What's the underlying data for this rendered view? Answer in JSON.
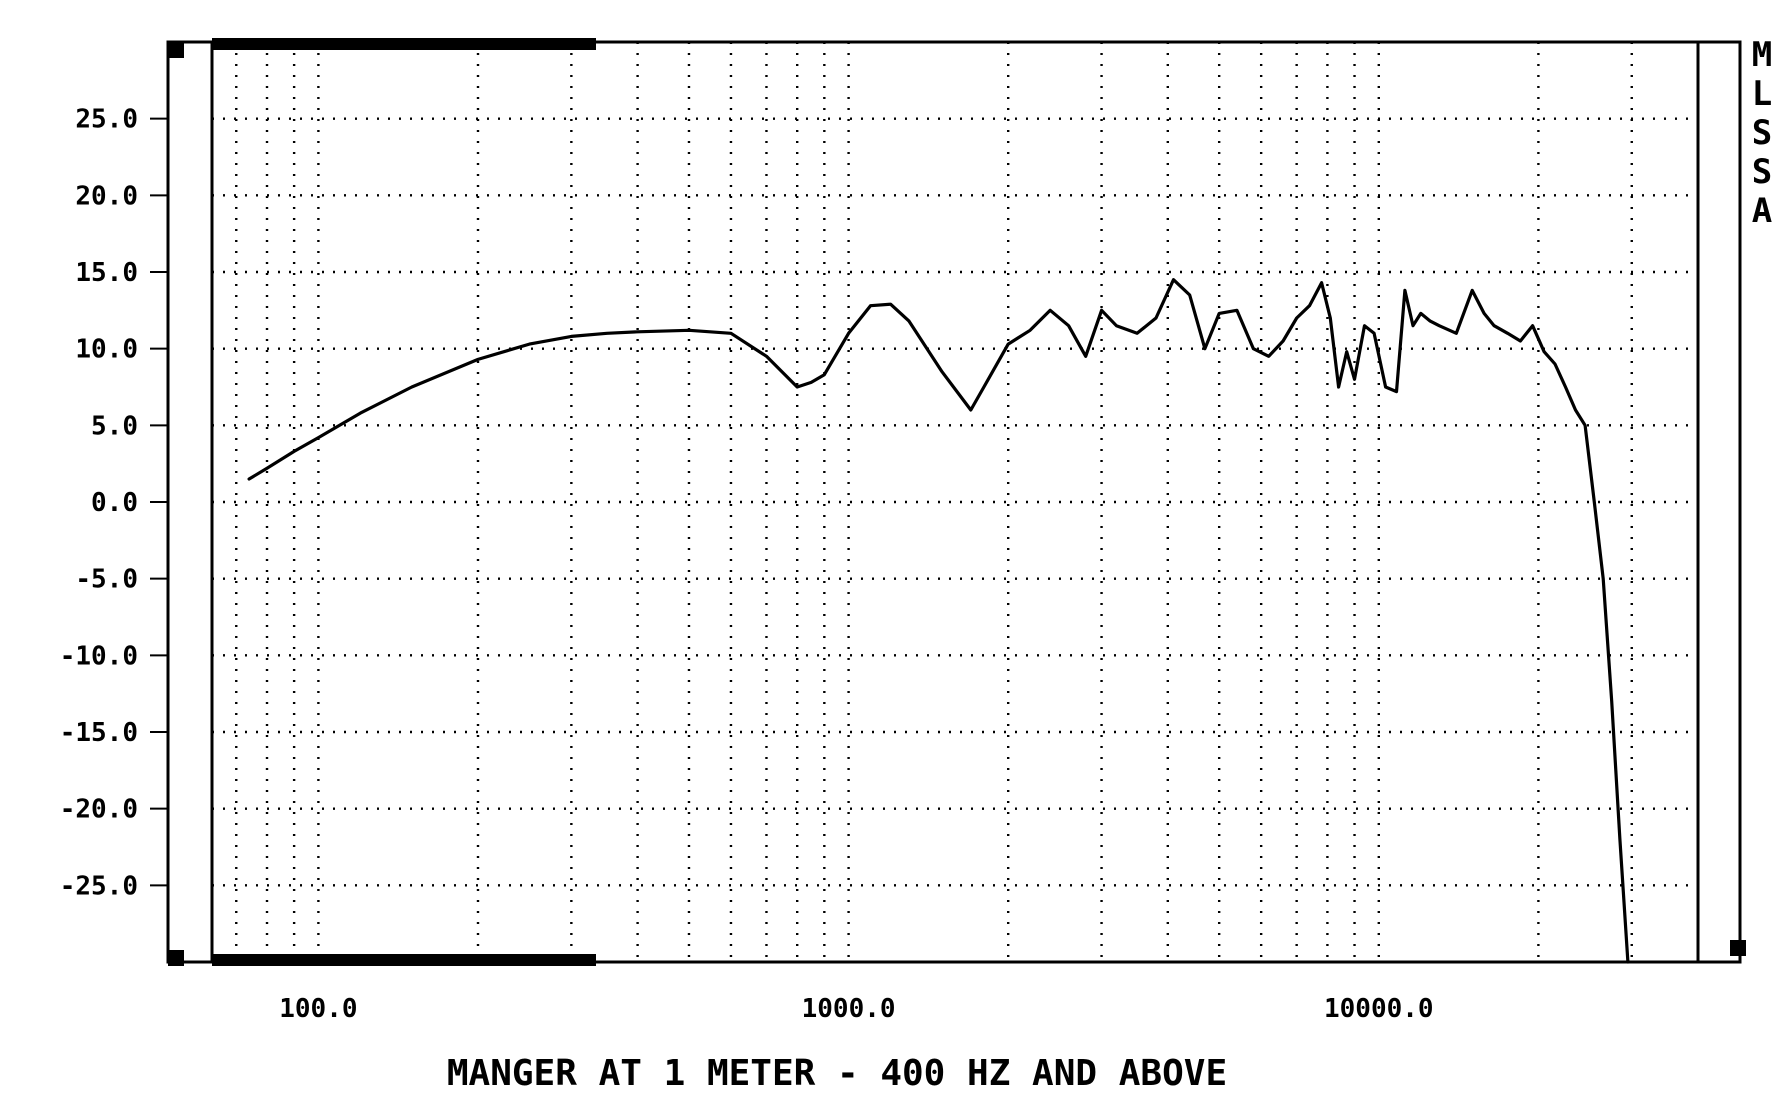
{
  "chart_data": {
    "type": "line",
    "title": "MANGER AT 1 METER - 400 HZ AND ABOVE",
    "side_label": [
      "M",
      "L",
      "S",
      "S",
      "A"
    ],
    "xlabel": "",
    "ylabel": "",
    "x_scale": "log",
    "xlim": [
      63,
      40000
    ],
    "ylim": [
      -30,
      30
    ],
    "x_ticks": [
      {
        "value": 100,
        "label": "100.0"
      },
      {
        "value": 1000,
        "label": "1000.0"
      },
      {
        "value": 10000,
        "label": "10000.0"
      }
    ],
    "y_ticks": [
      {
        "value": 25,
        "label": "25.0"
      },
      {
        "value": 20,
        "label": "20.0"
      },
      {
        "value": 15,
        "label": "15.0"
      },
      {
        "value": 10,
        "label": "10.0"
      },
      {
        "value": 5,
        "label": "5.0"
      },
      {
        "value": 0,
        "label": "0.0"
      },
      {
        "value": -5,
        "label": "-5.0"
      },
      {
        "value": -10,
        "label": "-10.0"
      },
      {
        "value": -15,
        "label": "-15.0"
      },
      {
        "value": -20,
        "label": "-20.0"
      },
      {
        "value": -25,
        "label": "-25.0"
      }
    ],
    "grid": true,
    "legend": "none",
    "series": [
      {
        "color": "#000000",
        "x": [
          74,
          80,
          90,
          100,
          120,
          150,
          200,
          250,
          300,
          350,
          400,
          500,
          600,
          700,
          800,
          850,
          900,
          1000,
          1100,
          1200,
          1300,
          1500,
          1700,
          1800,
          2000,
          2200,
          2400,
          2600,
          2800,
          3000,
          3200,
          3500,
          3800,
          4100,
          4400,
          4700,
          5000,
          5400,
          5800,
          6200,
          6600,
          7000,
          7400,
          7800,
          8100,
          8400,
          8700,
          9000,
          9400,
          9800,
          10300,
          10800,
          11200,
          11600,
          12000,
          12500,
          13000,
          14000,
          15000,
          15800,
          16500,
          17500,
          18500,
          19500,
          20500,
          21500,
          22500,
          23500,
          24500,
          25500,
          26500,
          27500,
          28500,
          29500
        ],
        "y": [
          1.5,
          2.2,
          3.3,
          4.2,
          5.8,
          7.5,
          9.3,
          10.3,
          10.8,
          11.0,
          11.1,
          11.2,
          11.0,
          9.5,
          7.5,
          7.8,
          8.3,
          11.0,
          12.8,
          12.9,
          11.8,
          8.5,
          6.0,
          7.5,
          10.3,
          11.2,
          12.5,
          11.5,
          9.5,
          12.5,
          11.5,
          11.0,
          12.0,
          14.5,
          13.5,
          10.0,
          12.3,
          12.5,
          10.0,
          9.5,
          10.5,
          12.0,
          12.8,
          14.3,
          12.0,
          7.5,
          9.8,
          8.0,
          11.5,
          11.0,
          7.5,
          7.2,
          13.8,
          11.5,
          12.3,
          11.8,
          11.5,
          11.0,
          13.8,
          12.3,
          11.5,
          11.0,
          10.5,
          11.5,
          9.8,
          9.0,
          7.5,
          6.0,
          5.0,
          0.0,
          -5.0,
          -13.0,
          -22.0,
          -30.0
        ]
      }
    ]
  }
}
